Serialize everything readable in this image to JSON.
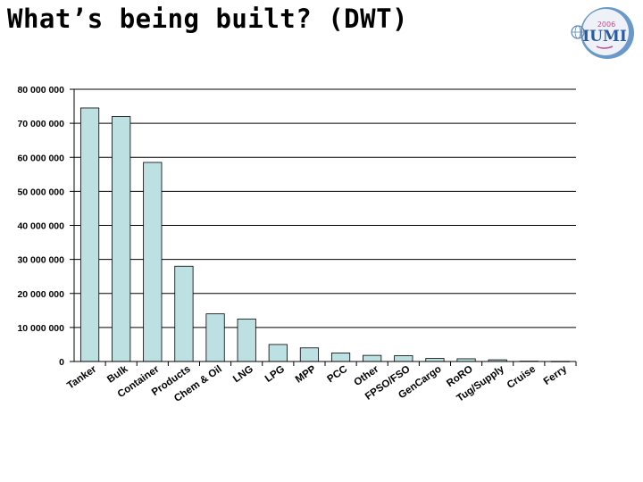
{
  "slide": {
    "title": "What’s being built? (DWT)",
    "logo": {
      "year": "2006",
      "text": "IUMI"
    }
  },
  "colors": {
    "bar_fill": "#bde0e3",
    "bar_stroke": "#000000",
    "grid": "#000000"
  },
  "chart_data": {
    "type": "bar",
    "title": "",
    "xlabel": "",
    "ylabel": "",
    "ylim": [
      0,
      80000000
    ],
    "y_ticks": [
      0,
      10000000,
      20000000,
      30000000,
      40000000,
      50000000,
      60000000,
      70000000,
      80000000
    ],
    "y_tick_labels": [
      "0",
      "10 000 000",
      "20 000 000",
      "30 000 000",
      "40 000 000",
      "50 000 000",
      "60 000 000",
      "70 000 000",
      "80 000 000"
    ],
    "grid": true,
    "legend": "none",
    "categories": [
      "Tanker",
      "Bulk",
      "Container",
      "Products",
      "Chem & Oil",
      "LNG",
      "LPG",
      "MPP",
      "PCC",
      "Other",
      "FPSO/FSO",
      "GenCargo",
      "RoRO",
      "Tug/Supply",
      "Cruise",
      "Ferry"
    ],
    "values": [
      74500000,
      72000000,
      58500000,
      28000000,
      14000000,
      12500000,
      5000000,
      4000000,
      2500000,
      1800000,
      1700000,
      900000,
      800000,
      500000,
      100000,
      50000
    ]
  }
}
